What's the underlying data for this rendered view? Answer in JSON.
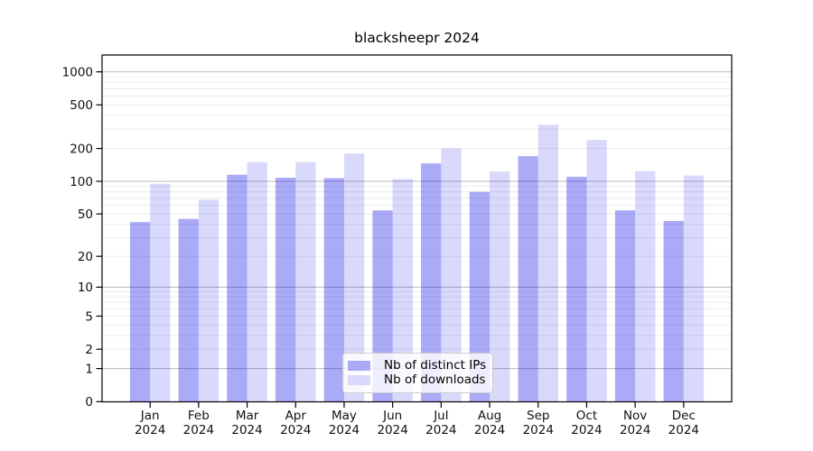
{
  "chart_data": {
    "type": "bar",
    "title": "blacksheepr 2024",
    "categories": [
      "Jan",
      "Feb",
      "Mar",
      "Apr",
      "May",
      "Jun",
      "Jul",
      "Aug",
      "Sep",
      "Oct",
      "Nov",
      "Dec"
    ],
    "category_year": "2024",
    "series": [
      {
        "name": "Nb of distinct IPs",
        "color": "rgba(20,20,230,0.36)",
        "swatch_color": "#a9a9f6",
        "values": [
          42,
          45,
          115,
          108,
          107,
          54,
          146,
          80,
          170,
          110,
          54,
          43
        ]
      },
      {
        "name": "Nb of downloads",
        "color": "rgba(20,20,230,0.16)",
        "swatch_color": "#d9d9fb",
        "values": [
          95,
          68,
          150,
          150,
          180,
          105,
          200,
          123,
          330,
          240,
          124,
          113
        ]
      }
    ],
    "yscale": "log1p",
    "ylim": [
      0,
      1430
    ],
    "yticks": [
      0,
      1,
      2,
      5,
      10,
      20,
      50,
      100,
      200,
      500,
      1000
    ],
    "major_gridlines": [
      1,
      10,
      100,
      1000
    ],
    "minor_gridlines": [
      2,
      3,
      4,
      5,
      6,
      7,
      8,
      9,
      20,
      30,
      40,
      50,
      60,
      70,
      80,
      90,
      200,
      300,
      400,
      500,
      600,
      700,
      800,
      900
    ],
    "grid": true,
    "legend_position": "lower center",
    "colors": {
      "major_grid": "#b8b8b8",
      "minor_grid": "#ececec",
      "axis": "#000000",
      "text": "#111111",
      "background": "#ffffff"
    }
  }
}
